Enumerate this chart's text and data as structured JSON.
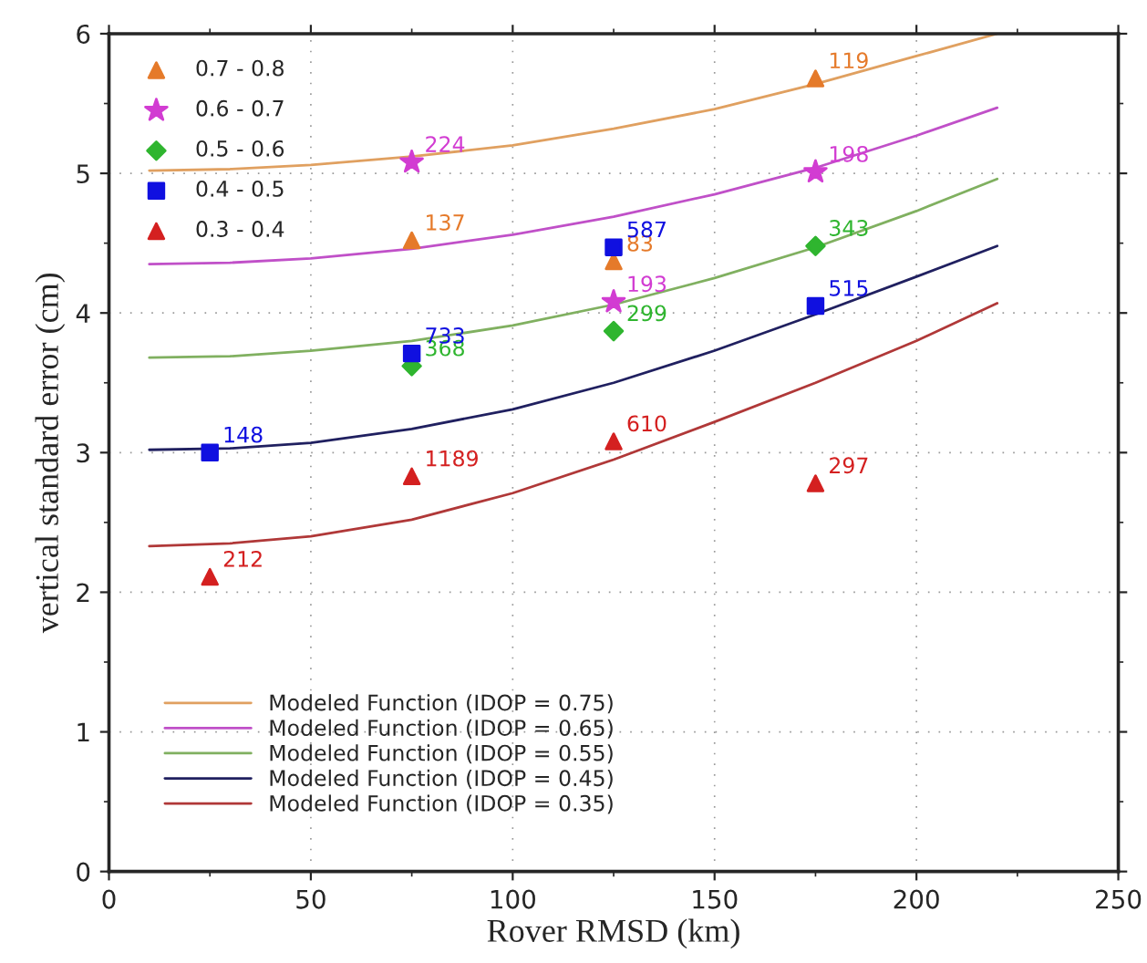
{
  "chart_data": {
    "type": "line",
    "xlabel": "Rover RMSD (km)",
    "ylabel": "vertical standard error (cm)",
    "xlim": [
      0,
      250
    ],
    "xticks": [
      0,
      50,
      100,
      150,
      200,
      250
    ],
    "ylim": [
      0,
      6
    ],
    "yticks": [
      0,
      1,
      2,
      3,
      4,
      5,
      6
    ],
    "grid": true,
    "legend": "top left",
    "series": [
      {
        "type": "scatter",
        "name": "0.7 - 0.8",
        "color": "#e57a2a",
        "marker": "triangle",
        "x": [
          75,
          125,
          175
        ],
        "values": [
          4.52,
          4.37,
          5.68
        ]
      },
      {
        "type": "scatter",
        "name": "0.6 - 0.7",
        "color": "#d23cd2",
        "marker": "star",
        "x": [
          75,
          125,
          175
        ],
        "values": [
          5.08,
          4.08,
          5.01
        ]
      },
      {
        "type": "scatter",
        "name": "0.5 - 0.6",
        "color": "#2fb52f",
        "marker": "diamond",
        "x": [
          75,
          125,
          175
        ],
        "values": [
          3.62,
          3.87,
          4.48
        ]
      },
      {
        "type": "scatter",
        "name": "0.4 - 0.5",
        "color": "#1010e0",
        "marker": "square",
        "x": [
          25,
          75,
          125,
          175
        ],
        "values": [
          3.0,
          3.71,
          4.47,
          4.05
        ]
      },
      {
        "type": "scatter",
        "name": "0.3 - 0.4",
        "color": "#d42020",
        "marker": "triangle",
        "x": [
          25,
          75,
          125,
          175
        ],
        "values": [
          2.11,
          2.83,
          3.08,
          2.78
        ]
      },
      {
        "name": "Modeled Function (IDOP = 0.75)",
        "color": "#e0a060",
        "x": [
          10,
          30,
          50,
          75,
          100,
          125,
          150,
          175,
          200,
          220
        ],
        "values": [
          5.02,
          5.03,
          5.06,
          5.12,
          5.2,
          5.32,
          5.46,
          5.64,
          5.84,
          6.0
        ]
      },
      {
        "name": "Modeled Function (IDOP = 0.65)",
        "color": "#c050c8",
        "x": [
          10,
          30,
          50,
          75,
          100,
          125,
          150,
          175,
          200,
          220
        ],
        "values": [
          4.35,
          4.36,
          4.39,
          4.46,
          4.56,
          4.69,
          4.85,
          5.04,
          5.27,
          5.47
        ]
      },
      {
        "name": "Modeled Function (IDOP = 0.55)",
        "color": "#80b060",
        "x": [
          10,
          30,
          50,
          75,
          100,
          125,
          150,
          175,
          200,
          220
        ],
        "values": [
          3.68,
          3.69,
          3.73,
          3.8,
          3.91,
          4.06,
          4.25,
          4.47,
          4.73,
          4.96
        ]
      },
      {
        "name": "Modeled Function (IDOP = 0.45)",
        "color": "#202060",
        "x": [
          10,
          30,
          50,
          75,
          100,
          125,
          150,
          175,
          200,
          220
        ],
        "values": [
          3.02,
          3.03,
          3.07,
          3.17,
          3.31,
          3.5,
          3.73,
          3.99,
          4.26,
          4.48
        ]
      },
      {
        "name": "Modeled Function (IDOP = 0.35)",
        "color": "#b03838",
        "x": [
          10,
          30,
          50,
          75,
          100,
          125,
          150,
          175,
          200,
          220
        ],
        "values": [
          2.33,
          2.35,
          2.4,
          2.52,
          2.71,
          2.95,
          3.22,
          3.5,
          3.8,
          4.07
        ]
      }
    ],
    "annotations": [
      {
        "text": "137",
        "x": 75,
        "y": 4.52
      },
      {
        "text": "83",
        "x": 125,
        "y": 4.37
      },
      {
        "text": "119",
        "x": 175,
        "y": 5.68
      },
      {
        "text": "224",
        "x": 75,
        "y": 5.08
      },
      {
        "text": "193",
        "x": 125,
        "y": 4.08
      },
      {
        "text": "198",
        "x": 175,
        "y": 5.01
      },
      {
        "text": "368",
        "x": 75,
        "y": 3.62
      },
      {
        "text": "299",
        "x": 125,
        "y": 3.87
      },
      {
        "text": "343",
        "x": 175,
        "y": 4.48
      },
      {
        "text": "148",
        "x": 25,
        "y": 3.0
      },
      {
        "text": "733",
        "x": 75,
        "y": 3.71
      },
      {
        "text": "587",
        "x": 125,
        "y": 4.47
      },
      {
        "text": "515",
        "x": 175,
        "y": 4.05
      },
      {
        "text": "212",
        "x": 25,
        "y": 2.11
      },
      {
        "text": "1189",
        "x": 75,
        "y": 2.83
      },
      {
        "text": "610",
        "x": 125,
        "y": 3.08
      },
      {
        "text": "297",
        "x": 175,
        "y": 2.78
      }
    ]
  }
}
